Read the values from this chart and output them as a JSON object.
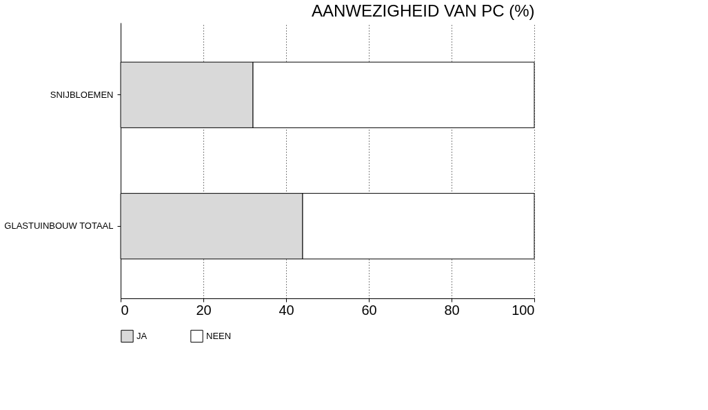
{
  "chart_data": {
    "type": "bar",
    "orientation": "horizontal",
    "stacked": true,
    "title": "AANWEZIGHEID VAN PC (%)",
    "categories": [
      "SNIJBLOEMEN",
      "GLASTUINBOUW TOTAAL"
    ],
    "series": [
      {
        "name": "JA",
        "color": "#d9d9d9",
        "values": [
          32,
          44
        ]
      },
      {
        "name": "NEEN",
        "color": "#ffffff",
        "values": [
          68,
          56
        ]
      }
    ],
    "xlim": [
      0,
      100
    ],
    "xticks": [
      0,
      20,
      40,
      60,
      80,
      100
    ],
    "grid": "x",
    "legend": "bottom"
  }
}
